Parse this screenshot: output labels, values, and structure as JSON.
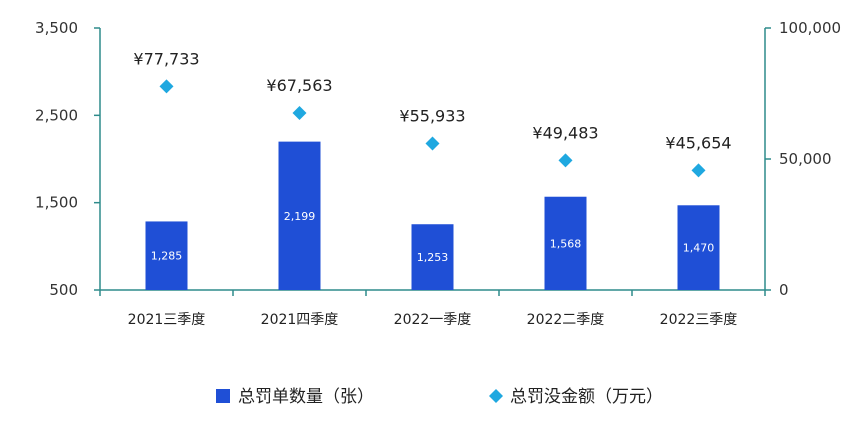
{
  "chart_data": {
    "type": "bar",
    "categories": [
      "2021三季度",
      "2021四季度",
      "2022一季度",
      "2022二季度",
      "2022三季度"
    ],
    "series": [
      {
        "name": "总罚单数量（张）",
        "type": "bar",
        "axis": "left",
        "color": "#1f4fd6",
        "values": [
          1285,
          2199,
          1253,
          1568,
          1470
        ],
        "labels": [
          "1,285",
          "2,199",
          "1,253",
          "1,568",
          "1,470"
        ]
      },
      {
        "name": "总罚没金额（万元）",
        "type": "scatter",
        "marker": "diamond",
        "axis": "right",
        "color": "#1fa8e0",
        "values": [
          77733,
          67563,
          55933,
          49483,
          45654
        ],
        "labels": [
          "¥77,733",
          "¥67,563",
          "¥55,933",
          "¥49,483",
          "¥45,654"
        ]
      }
    ],
    "y_left": {
      "ylim": [
        500,
        3500
      ],
      "ticks": [
        "3,500",
        "2,500",
        "1,500",
        "500"
      ]
    },
    "y_right": {
      "ylim": [
        0,
        100000
      ],
      "ticks": [
        "100,000",
        "50,000",
        "0"
      ]
    },
    "axis_color": "#2e8b8b",
    "grid": false,
    "legend_position": "bottom"
  }
}
